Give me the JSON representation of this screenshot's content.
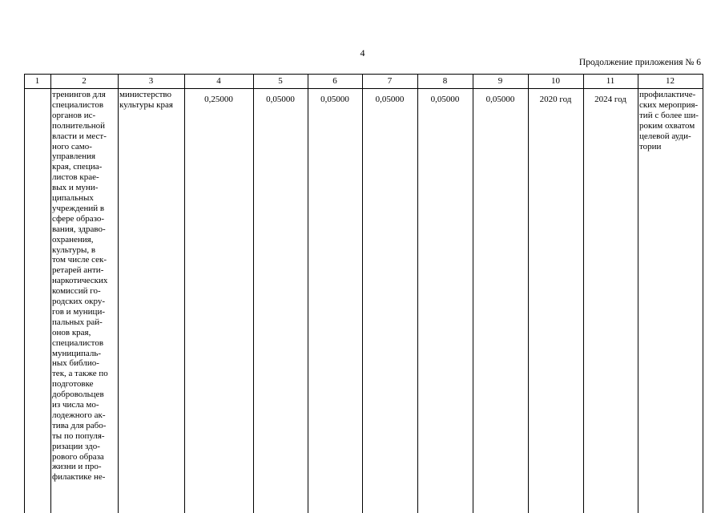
{
  "header": {
    "page_number": "4",
    "continuation": "Продолжение приложения № 6"
  },
  "table": {
    "column_numbers": [
      "1",
      "2",
      "3",
      "4",
      "5",
      "6",
      "7",
      "8",
      "9",
      "10",
      "11",
      "12"
    ],
    "rows": [
      [
        "",
        [
          "тренингов для",
          "специалистов",
          "органов ис-",
          "полнительной",
          "власти и мест-",
          "ного само-",
          "управления",
          "края, специа-",
          "листов крае-",
          "вых и муни-",
          "ципальных",
          "учреждений в",
          "сфере образо-",
          "вания, здраво-",
          "охранения,",
          "культуры, в",
          "том числе сек-",
          "ретарей анти-",
          "наркотических",
          "комиссий го-",
          "родских окру-",
          "гов и муници-",
          "пальных рай-",
          "онов края,",
          "специалистов",
          "муниципаль-",
          "ных библио-",
          "тек, а также по",
          "подготовке",
          "добровольцев",
          "из числа мо-",
          "лодежного ак-",
          "тива для рабо-",
          "ты по популя-",
          "ризации здо-",
          "рового образа",
          "жизни и про-",
          "филактике не-"
        ],
        [
          "министерство",
          "культуры края"
        ],
        "0,25000",
        "0,05000",
        "0,05000",
        "0,05000",
        "0,05000",
        "0,05000",
        "2020 год",
        "2024 год",
        [
          "профилактиче-",
          "ских мероприя-",
          "тий с более ши-",
          "роким охватом",
          "целевой ауди-",
          "тории"
        ]
      ]
    ]
  }
}
